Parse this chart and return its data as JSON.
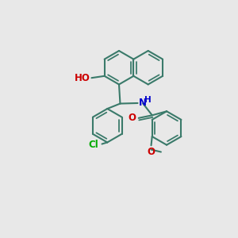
{
  "background_color": "#e8e8e8",
  "bond_color": "#3a7a6a",
  "bond_width": 1.5,
  "atom_colors": {
    "O": "#cc0000",
    "N": "#0000cc",
    "Cl": "#00aa00",
    "H": "#3a7a6a"
  },
  "font_size": 8.5,
  "fig_size": [
    3.0,
    3.0
  ],
  "dpi": 100
}
